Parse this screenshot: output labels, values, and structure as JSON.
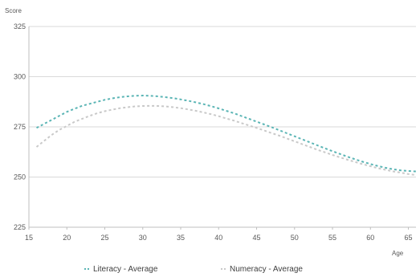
{
  "chart_data": {
    "type": "line",
    "title": "",
    "ylabel": "Score",
    "xlabel": "Age",
    "xlim": [
      15,
      66
    ],
    "ylim": [
      225,
      325
    ],
    "xticks": [
      15,
      20,
      25,
      30,
      35,
      40,
      45,
      50,
      55,
      60,
      65
    ],
    "yticks": [
      225,
      250,
      275,
      300,
      325
    ],
    "grid": "horizontal",
    "legend": "bottom",
    "colors": {
      "series1": "#5BB5B5",
      "series2": "#C9C9C9",
      "axis": "#BFBFBF",
      "grid": "#D9D9D9"
    },
    "x": [
      16,
      17,
      18,
      19,
      20,
      21,
      22,
      23,
      24,
      25,
      26,
      27,
      28,
      29,
      30,
      31,
      32,
      33,
      34,
      35,
      36,
      37,
      38,
      39,
      40,
      41,
      42,
      43,
      44,
      45,
      46,
      47,
      48,
      49,
      50,
      51,
      52,
      53,
      54,
      55,
      56,
      57,
      58,
      59,
      60,
      61,
      62,
      63,
      64,
      65,
      66
    ],
    "series": [
      {
        "name": "Literacy - Average",
        "values": [
          274.5,
          276.5,
          278.5,
          280.5,
          282.5,
          284.0,
          285.5,
          286.5,
          287.5,
          288.5,
          289.2,
          289.8,
          290.2,
          290.5,
          290.6,
          290.5,
          290.2,
          289.8,
          289.3,
          288.7,
          288.0,
          287.2,
          286.3,
          285.3,
          284.2,
          283.0,
          281.8,
          280.4,
          279.0,
          277.6,
          276.2,
          274.8,
          273.3,
          271.8,
          270.3,
          268.8,
          267.3,
          265.8,
          264.3,
          262.9,
          261.5,
          260.1,
          258.8,
          257.6,
          256.5,
          255.5,
          254.6,
          253.9,
          253.3,
          253.0,
          252.8
        ]
      },
      {
        "name": "Numeracy - Average",
        "values": [
          265.0,
          268.0,
          271.0,
          273.5,
          275.5,
          277.5,
          279.0,
          280.5,
          281.8,
          282.8,
          283.6,
          284.3,
          284.8,
          285.2,
          285.4,
          285.5,
          285.4,
          285.2,
          284.8,
          284.3,
          283.7,
          283.0,
          282.2,
          281.3,
          280.3,
          279.2,
          278.1,
          276.9,
          275.7,
          274.5,
          273.2,
          271.9,
          270.6,
          269.2,
          267.8,
          266.4,
          265.0,
          263.6,
          262.3,
          261.0,
          259.8,
          258.6,
          257.5,
          256.4,
          255.4,
          254.4,
          253.6,
          252.8,
          252.2,
          251.5,
          251.0
        ]
      }
    ]
  }
}
